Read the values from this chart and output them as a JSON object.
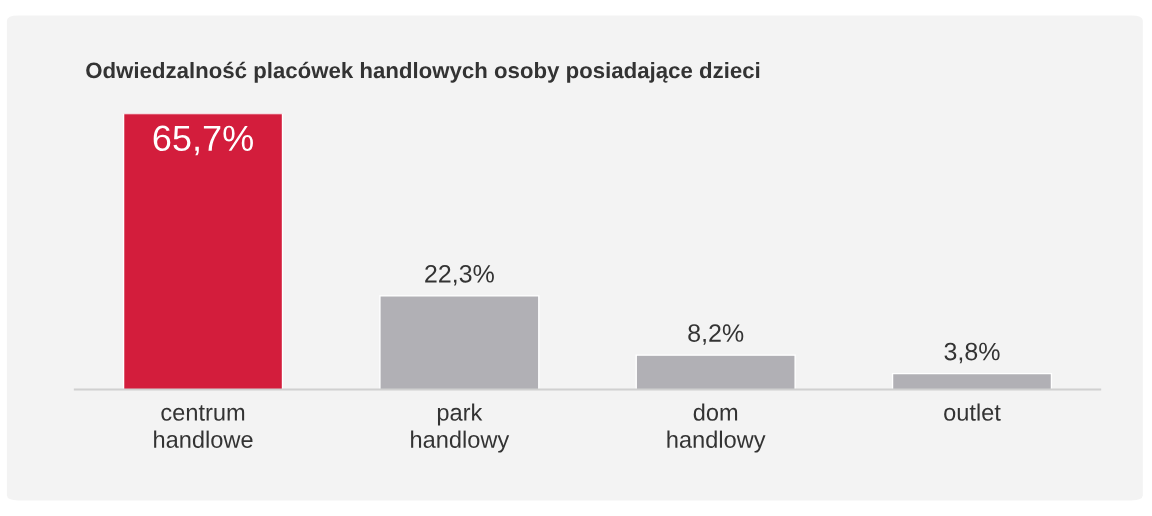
{
  "chart_data": {
    "type": "bar",
    "title": "Odwiedzalność placówek handlowych osoby posiadające dzieci",
    "categories": [
      "centrum\nhandlowe",
      "park\nhandlowy",
      "dom\nhandlowy",
      "outlet"
    ],
    "values": [
      65.7,
      22.3,
      8.2,
      3.8
    ],
    "value_labels": [
      "65,7%",
      "22,3%",
      "8,2%",
      "3,8%"
    ],
    "colors": [
      "#d31d3c",
      "#b1b0b5",
      "#b1b0b5",
      "#b1b0b5"
    ],
    "grid": false,
    "legend": false
  }
}
